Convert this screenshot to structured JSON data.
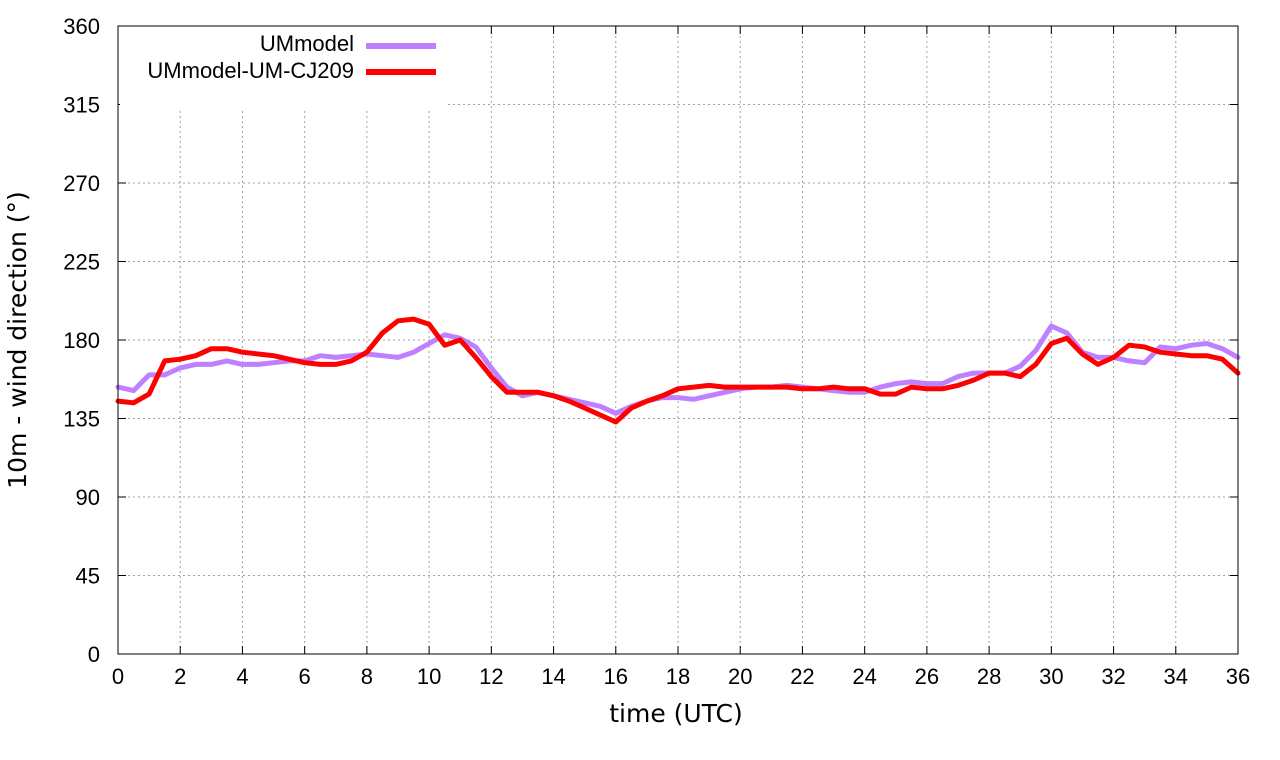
{
  "chart_data": {
    "type": "line",
    "title": "",
    "xlabel": "time (UTC)",
    "ylabel": "10m - wind direction (°)",
    "xlim": [
      0,
      36
    ],
    "ylim": [
      0,
      360
    ],
    "xticks": [
      0,
      2,
      4,
      6,
      8,
      10,
      12,
      14,
      16,
      18,
      20,
      22,
      24,
      26,
      28,
      30,
      32,
      34,
      36
    ],
    "yticks": [
      0,
      45,
      90,
      135,
      180,
      225,
      270,
      315,
      360
    ],
    "grid": true,
    "legend": "top-left",
    "series": [
      {
        "name": "UMmodel",
        "color": "#bf80ff",
        "x": [
          0,
          0.5,
          1,
          1.5,
          2,
          2.5,
          3,
          3.5,
          4,
          4.5,
          5,
          5.5,
          6,
          6.5,
          7,
          7.5,
          8,
          8.5,
          9,
          9.5,
          10,
          10.5,
          11,
          11.5,
          12,
          12.5,
          13,
          13.5,
          14,
          14.5,
          15,
          15.5,
          16,
          16.5,
          17,
          17.5,
          18,
          18.5,
          19,
          19.5,
          20,
          20.5,
          21,
          21.5,
          22,
          22.5,
          23,
          23.5,
          24,
          24.5,
          25,
          25.5,
          26,
          26.5,
          27,
          27.5,
          28,
          28.5,
          29,
          29.5,
          30,
          30.5,
          31,
          31.5,
          32,
          32.5,
          33,
          33.5,
          34,
          34.5,
          35,
          35.5,
          36
        ],
        "y": [
          153,
          151,
          160,
          160,
          164,
          166,
          166,
          168,
          166,
          166,
          167,
          168,
          168,
          171,
          170,
          171,
          172,
          171,
          170,
          173,
          178,
          183,
          181,
          176,
          164,
          153,
          148,
          150,
          148,
          146,
          144,
          142,
          138,
          142,
          145,
          147,
          147,
          146,
          148,
          150,
          152,
          153,
          153,
          154,
          153,
          152,
          151,
          150,
          150,
          153,
          155,
          156,
          155,
          155,
          159,
          161,
          161,
          161,
          165,
          174,
          188,
          184,
          173,
          170,
          170,
          168,
          167,
          176,
          175,
          177,
          178,
          175,
          170
        ]
      },
      {
        "name": "UMmodel-UM-CJ209",
        "color": "#ff0000",
        "x": [
          0,
          0.5,
          1,
          1.5,
          2,
          2.5,
          3,
          3.5,
          4,
          4.5,
          5,
          5.5,
          6,
          6.5,
          7,
          7.5,
          8,
          8.5,
          9,
          9.5,
          10,
          10.5,
          11,
          11.5,
          12,
          12.5,
          13,
          13.5,
          14,
          14.5,
          15,
          15.5,
          16,
          16.5,
          17,
          17.5,
          18,
          18.5,
          19,
          19.5,
          20,
          20.5,
          21,
          21.5,
          22,
          22.5,
          23,
          23.5,
          24,
          24.5,
          25,
          25.5,
          26,
          26.5,
          27,
          27.5,
          28,
          28.5,
          29,
          29.5,
          30,
          30.5,
          31,
          31.5,
          32,
          32.5,
          33,
          33.5,
          34,
          34.5,
          35,
          35.5,
          36
        ],
        "y": [
          145,
          144,
          149,
          168,
          169,
          171,
          175,
          175,
          173,
          172,
          171,
          169,
          167,
          166,
          166,
          168,
          173,
          184,
          191,
          192,
          189,
          177,
          180,
          170,
          159,
          150,
          150,
          150,
          148,
          145,
          141,
          137,
          133,
          141,
          145,
          148,
          152,
          153,
          154,
          153,
          153,
          153,
          153,
          153,
          152,
          152,
          153,
          152,
          152,
          149,
          149,
          153,
          152,
          152,
          154,
          157,
          161,
          161,
          159,
          166,
          178,
          181,
          172,
          166,
          170,
          177,
          176,
          173,
          172,
          171,
          171,
          169,
          161
        ]
      }
    ]
  }
}
